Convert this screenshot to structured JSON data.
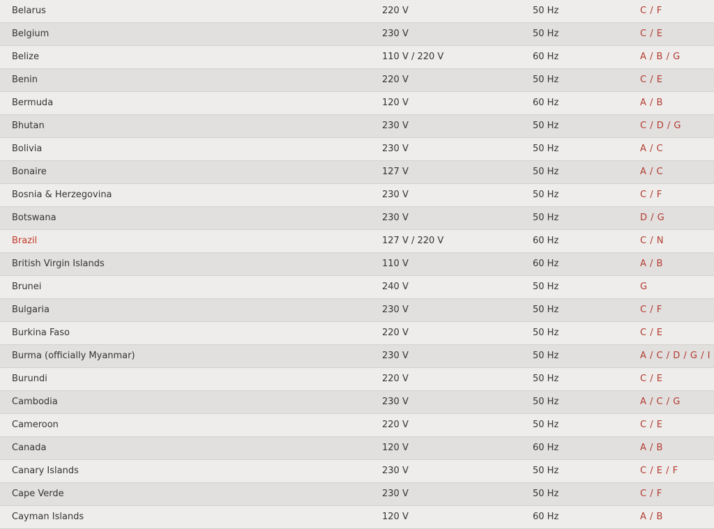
{
  "colors": {
    "plug_text": "#b03a2e",
    "link": "#c0392b",
    "row_light": "#efedeb",
    "row_dark": "#e2e0df"
  },
  "rows": [
    {
      "country": "Belarus",
      "voltage": "220 V",
      "frequency": "50 Hz",
      "plugs": "C / F"
    },
    {
      "country": "Belgium",
      "voltage": "230 V",
      "frequency": "50 Hz",
      "plugs": "C / E"
    },
    {
      "country": "Belize",
      "voltage": "110 V / 220 V",
      "frequency": "60 Hz",
      "plugs": "A / B / G"
    },
    {
      "country": "Benin",
      "voltage": "220 V",
      "frequency": "50 Hz",
      "plugs": "C / E"
    },
    {
      "country": "Bermuda",
      "voltage": "120 V",
      "frequency": "60 Hz",
      "plugs": "A / B"
    },
    {
      "country": "Bhutan",
      "voltage": "230 V",
      "frequency": "50 Hz",
      "plugs": "C / D / G"
    },
    {
      "country": "Bolivia",
      "voltage": "230 V",
      "frequency": "50 Hz",
      "plugs": "A / C"
    },
    {
      "country": "Bonaire",
      "voltage": "127 V",
      "frequency": "50 Hz",
      "plugs": "A / C"
    },
    {
      "country": "Bosnia & Herzegovina",
      "voltage": "230 V",
      "frequency": "50 Hz",
      "plugs": "C / F"
    },
    {
      "country": "Botswana",
      "voltage": "230 V",
      "frequency": "50 Hz",
      "plugs": "D / G"
    },
    {
      "country": "Brazil",
      "voltage": "127 V / 220 V",
      "frequency": "60 Hz",
      "plugs": "C / N",
      "link": true
    },
    {
      "country": "British Virgin Islands",
      "voltage": "110 V",
      "frequency": "60 Hz",
      "plugs": "A / B"
    },
    {
      "country": "Brunei",
      "voltage": "240 V",
      "frequency": "50 Hz",
      "plugs": "G"
    },
    {
      "country": "Bulgaria",
      "voltage": "230 V",
      "frequency": "50 Hz",
      "plugs": "C / F"
    },
    {
      "country": "Burkina Faso",
      "voltage": "220 V",
      "frequency": "50 Hz",
      "plugs": "C / E"
    },
    {
      "country": "Burma (officially Myanmar)",
      "voltage": "230 V",
      "frequency": "50 Hz",
      "plugs": "A / C / D / G / I"
    },
    {
      "country": "Burundi",
      "voltage": "220 V",
      "frequency": "50 Hz",
      "plugs": "C / E"
    },
    {
      "country": "Cambodia",
      "voltage": "230 V",
      "frequency": "50 Hz",
      "plugs": "A / C / G"
    },
    {
      "country": "Cameroon",
      "voltage": "220 V",
      "frequency": "50 Hz",
      "plugs": "C / E"
    },
    {
      "country": "Canada",
      "voltage": "120 V",
      "frequency": "60 Hz",
      "plugs": "A / B"
    },
    {
      "country": "Canary Islands",
      "voltage": "230 V",
      "frequency": "50 Hz",
      "plugs": "C / E / F"
    },
    {
      "country": "Cape Verde",
      "voltage": "230 V",
      "frequency": "50 Hz",
      "plugs": "C / F"
    },
    {
      "country": "Cayman Islands",
      "voltage": "120 V",
      "frequency": "60 Hz",
      "plugs": "A / B"
    }
  ]
}
